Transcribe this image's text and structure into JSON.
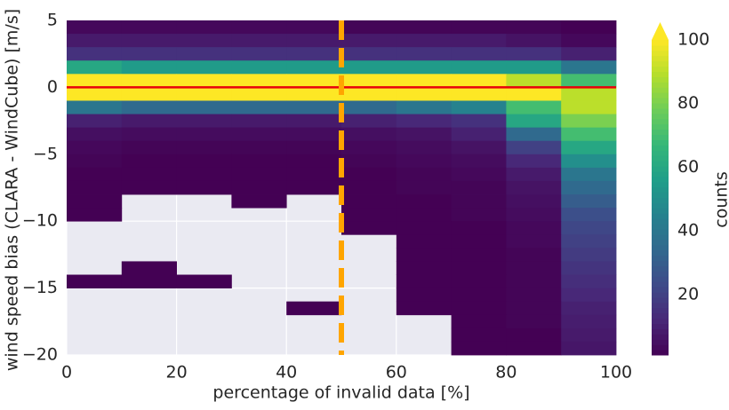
{
  "chart_data": {
    "type": "hist2d",
    "xlabel": "percentage of invalid data [%]",
    "ylabel": "wind speed bias (CLARA - WindCube) [m/s]",
    "colorbar_label": "counts",
    "xbins": [
      0,
      10,
      20,
      30,
      40,
      50,
      60,
      70,
      80,
      90,
      100
    ],
    "ybins": [
      5,
      4,
      3,
      2,
      1,
      0,
      -1,
      -2,
      -3,
      -4,
      -5,
      -6,
      -7,
      -8,
      -9,
      -10,
      -11,
      -12,
      -13,
      -14,
      -15,
      -16,
      -17,
      -18,
      -19,
      -20
    ],
    "counts": [
      [
        3,
        3,
        3,
        3,
        3,
        2,
        2,
        2,
        2,
        1
      ],
      [
        8,
        8,
        8,
        8,
        8,
        8,
        8,
        8,
        6,
        3
      ],
      [
        15,
        15,
        15,
        15,
        15,
        15,
        15,
        15,
        15,
        10
      ],
      [
        60,
        55,
        55,
        55,
        55,
        55,
        55,
        55,
        55,
        40
      ],
      [
        100,
        100,
        100,
        100,
        100,
        100,
        100,
        100,
        90,
        70
      ],
      [
        100,
        100,
        100,
        100,
        100,
        100,
        100,
        100,
        100,
        90
      ],
      [
        40,
        35,
        35,
        35,
        35,
        35,
        40,
        45,
        70,
        90
      ],
      [
        10,
        8,
        8,
        8,
        8,
        10,
        12,
        15,
        60,
        80
      ],
      [
        5,
        4,
        4,
        4,
        4,
        5,
        6,
        10,
        35,
        70
      ],
      [
        3,
        2,
        2,
        2,
        2,
        3,
        4,
        6,
        20,
        60
      ],
      [
        2,
        1,
        1,
        1,
        1,
        2,
        3,
        4,
        12,
        50
      ],
      [
        1,
        1,
        1,
        1,
        1,
        1,
        2,
        3,
        8,
        40
      ],
      [
        1,
        1,
        1,
        1,
        1,
        1,
        2,
        2,
        6,
        35
      ],
      [
        1,
        0,
        0,
        1,
        0,
        1,
        1,
        2,
        5,
        30
      ],
      [
        1,
        0,
        0,
        0,
        0,
        1,
        1,
        2,
        4,
        25
      ],
      [
        0,
        0,
        0,
        0,
        0,
        1,
        1,
        1,
        3,
        22
      ],
      [
        0,
        0,
        0,
        0,
        0,
        0,
        1,
        1,
        3,
        20
      ],
      [
        0,
        0,
        0,
        0,
        0,
        0,
        1,
        1,
        2,
        18
      ],
      [
        0,
        1,
        0,
        0,
        0,
        0,
        1,
        1,
        2,
        16
      ],
      [
        1,
        1,
        1,
        0,
        0,
        0,
        1,
        1,
        2,
        14
      ],
      [
        0,
        0,
        0,
        0,
        0,
        0,
        1,
        1,
        2,
        12
      ],
      [
        0,
        0,
        0,
        0,
        1,
        0,
        1,
        1,
        2,
        10
      ],
      [
        0,
        0,
        0,
        0,
        0,
        0,
        0,
        1,
        2,
        9
      ],
      [
        0,
        0,
        0,
        0,
        0,
        0,
        0,
        1,
        1,
        8
      ],
      [
        0,
        0,
        0,
        0,
        0,
        0,
        0,
        1,
        1,
        7
      ]
    ],
    "colormap": "viridis",
    "clim": [
      1,
      100
    ],
    "colorbar_ticks": [
      20,
      40,
      60,
      80,
      100
    ],
    "xlim": [
      0,
      100
    ],
    "ylim": [
      -20,
      5
    ],
    "xticks": [
      0,
      20,
      40,
      60,
      80,
      100
    ],
    "yticks": [
      5,
      0,
      {
        "value": -5,
        "label": "−5"
      },
      {
        "value": -10,
        "label": "−10"
      },
      {
        "value": -15,
        "label": "−15"
      },
      {
        "value": -20,
        "label": "−20"
      }
    ],
    "grid": true,
    "hlines": [
      {
        "value": 0,
        "color": "#e8000b"
      }
    ],
    "vlines": [
      {
        "value": 50,
        "color": "#ffa500"
      }
    ]
  }
}
